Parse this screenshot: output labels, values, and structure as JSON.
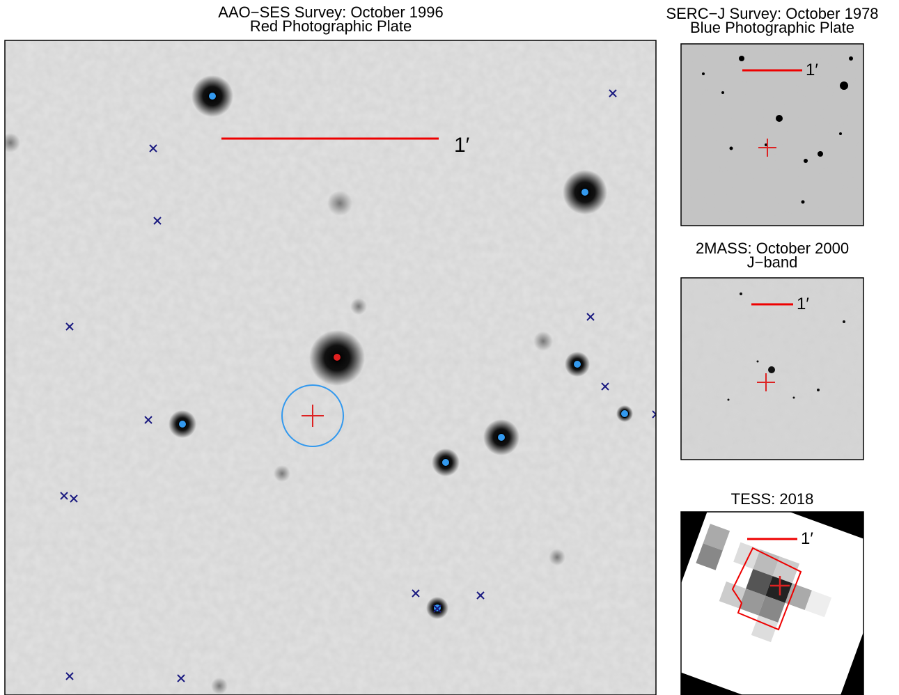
{
  "panels": [
    {
      "title": [
        "AAO−SES Survey: October 1996",
        "Red Photographic Plate"
      ],
      "scale_label": "1′"
    },
    {
      "title": [
        "SERC−J Survey: October 1978",
        "Blue Photographic Plate"
      ],
      "scale_label": "1′"
    },
    {
      "title": [
        "2MASS: October 2000",
        "J−band"
      ],
      "scale_label": "1′"
    },
    {
      "title": [
        "TESS: 2018"
      ],
      "scale_label": "1′"
    }
  ]
}
